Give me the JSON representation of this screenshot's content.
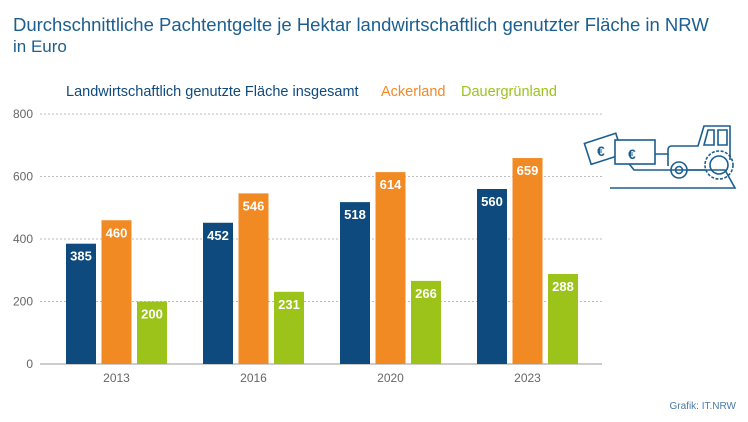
{
  "chart_data": {
    "type": "bar",
    "title": "Durchschnittliche Pachtentgelte je Hektar landwirtschaftlich genutzter Fläche in NRW",
    "subtitle": "in Euro",
    "categories": [
      "2013",
      "2016",
      "2020",
      "2023"
    ],
    "series": [
      {
        "name": "Landwirtschaftlich genutzte Fläche insgesamt",
        "color": "#0e4a7d",
        "values": [
          385,
          452,
          518,
          560
        ]
      },
      {
        "name": "Ackerland",
        "color": "#f28a24",
        "values": [
          460,
          546,
          614,
          659
        ]
      },
      {
        "name": "Dauergrünland",
        "color": "#9cc31a",
        "values": [
          200,
          231,
          266,
          288
        ]
      }
    ],
    "yticks": [
      "0",
      "200",
      "400",
      "600",
      "800"
    ],
    "ylim": [
      0,
      800
    ],
    "grid": true,
    "legend": "top",
    "xlabel": "",
    "ylabel": ""
  },
  "source": "Grafik: IT.NRW",
  "icon": "tractor-euro-icon"
}
